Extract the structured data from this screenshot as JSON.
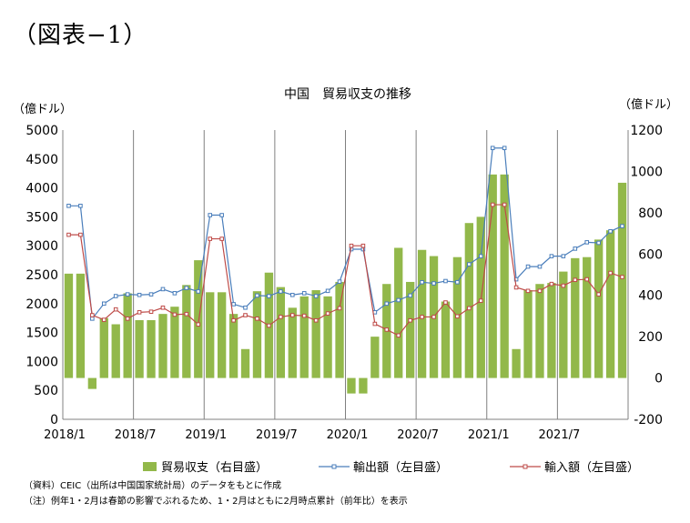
{
  "figure_label": "（図表−1）",
  "notes": {
    "source": "（資料）CEIC（出所は中国国家統計局）のデータをもとに作成",
    "note": "（注）例年1・2月は春節の影響でぶれるため、1・2月はともに2月時点累計（前年比）を表示"
  },
  "chart_data": {
    "type": "bar+line",
    "title": "中国　貿易収支の推移",
    "ylabel_left": "（億ドル）",
    "ylabel_right": "（億ドル）",
    "ylim_left": [
      0,
      5000
    ],
    "yticks_left": [
      0,
      500,
      1000,
      1500,
      2000,
      2500,
      3000,
      3500,
      4000,
      4500,
      5000
    ],
    "ylim_right": [
      -200,
      1200
    ],
    "yticks_right": [
      -200,
      0,
      200,
      400,
      600,
      800,
      1000,
      1200
    ],
    "grid": "vertical-yearly",
    "legend_position": "bottom",
    "categories": [
      "2018/1",
      "2018/2",
      "2018/3",
      "2018/4",
      "2018/5",
      "2018/6",
      "2018/7",
      "2018/8",
      "2018/9",
      "2018/10",
      "2018/11",
      "2018/12",
      "2019/1",
      "2019/2",
      "2019/3",
      "2019/4",
      "2019/5",
      "2019/6",
      "2019/7",
      "2019/8",
      "2019/9",
      "2019/10",
      "2019/11",
      "2019/12",
      "2020/1",
      "2020/2",
      "2020/3",
      "2020/4",
      "2020/5",
      "2020/6",
      "2020/7",
      "2020/8",
      "2020/9",
      "2020/10",
      "2020/11",
      "2020/12",
      "2021/1",
      "2021/2",
      "2021/3",
      "2021/4",
      "2021/5",
      "2021/6",
      "2021/7",
      "2021/8",
      "2021/9",
      "2021/10",
      "2021/11",
      "2021/12"
    ],
    "xtick_labels": [
      "2018/1",
      "2018/7",
      "2019/1",
      "2019/7",
      "2020/1",
      "2020/7",
      "2021/1",
      "2021/7"
    ],
    "series": [
      {
        "name": "貿易収支（右目盛）",
        "type": "bar",
        "axis": "right",
        "color": "#92b84a",
        "values": [
          505,
          505,
          -53,
          290,
          260,
          410,
          280,
          280,
          310,
          345,
          450,
          570,
          415,
          415,
          310,
          140,
          420,
          510,
          440,
          340,
          395,
          425,
          395,
          465,
          -75,
          -75,
          200,
          455,
          630,
          465,
          620,
          590,
          370,
          585,
          750,
          780,
          985,
          985,
          140,
          425,
          455,
          460,
          515,
          580,
          585,
          670,
          715,
          945
        ]
      },
      {
        "name": "輸出額（左目盛）",
        "type": "line",
        "axis": "left",
        "color": "#4a7ebb",
        "values": [
          3690,
          3690,
          1740,
          2000,
          2130,
          2160,
          2150,
          2160,
          2250,
          2180,
          2270,
          2210,
          3530,
          3530,
          1990,
          1930,
          2140,
          2130,
          2210,
          2150,
          2180,
          2130,
          2220,
          2380,
          2940,
          2940,
          1850,
          2000,
          2060,
          2140,
          2370,
          2350,
          2390,
          2370,
          2680,
          2820,
          4690,
          4690,
          2420,
          2640,
          2640,
          2820,
          2820,
          2950,
          3060,
          3050,
          3250,
          3340
        ]
      },
      {
        "name": "輸入額（左目盛）",
        "type": "line",
        "axis": "left",
        "color": "#be4b48",
        "values": [
          3190,
          3190,
          1800,
          1720,
          1900,
          1740,
          1850,
          1860,
          1930,
          1810,
          1820,
          1640,
          3120,
          3120,
          1710,
          1800,
          1740,
          1620,
          1770,
          1800,
          1790,
          1710,
          1830,
          1920,
          3000,
          3000,
          1650,
          1550,
          1450,
          1710,
          1770,
          1770,
          2020,
          1780,
          1920,
          2050,
          3710,
          3710,
          2280,
          2220,
          2220,
          2340,
          2310,
          2410,
          2420,
          2160,
          2530,
          2460
        ]
      }
    ]
  }
}
